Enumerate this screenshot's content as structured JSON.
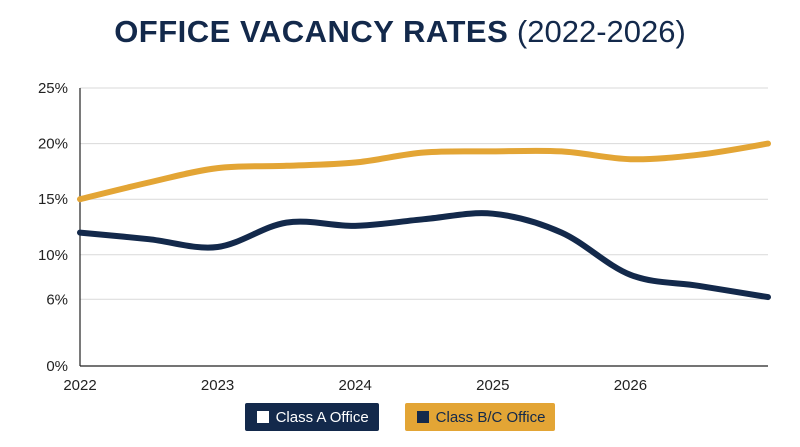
{
  "chart_data": {
    "type": "line",
    "title": "OFFICE VACANCY RATES",
    "subtitle": "(2022-2026)",
    "x_ticks": [
      "2022",
      "2023",
      "2024",
      "2025",
      "2026"
    ],
    "y_ticks": [
      {
        "value": 0,
        "label": "0%"
      },
      {
        "value": 6,
        "label": "6%"
      },
      {
        "value": 10,
        "label": "10%"
      },
      {
        "value": 15,
        "label": "15%"
      },
      {
        "value": 20,
        "label": "20%"
      },
      {
        "value": 25,
        "label": "25%"
      }
    ],
    "xlim": [
      2022,
      2027
    ],
    "ylim": [
      0,
      25
    ],
    "grid": true,
    "legend_position": "bottom-center",
    "series": [
      {
        "name": "Class A Office",
        "legend_label": "Class A Office",
        "color": "#13294b",
        "x": [
          2022,
          2022.5,
          2023,
          2023.5,
          2024,
          2024.5,
          2025,
          2025.5,
          2026,
          2026.5,
          2027
        ],
        "y": [
          12.0,
          11.4,
          10.7,
          12.9,
          12.6,
          13.2,
          13.7,
          12.0,
          8.2,
          7.2,
          6.2
        ]
      },
      {
        "name": "Class B/C Office",
        "legend_label": "Class B/C Office",
        "color": "#e3a535",
        "x": [
          2022,
          2022.5,
          2023,
          2023.5,
          2024,
          2024.5,
          2025,
          2025.5,
          2026,
          2026.5,
          2027
        ],
        "y": [
          15.0,
          16.5,
          17.8,
          18.0,
          18.3,
          19.2,
          19.3,
          19.3,
          18.6,
          19.0,
          20.0
        ]
      }
    ]
  }
}
